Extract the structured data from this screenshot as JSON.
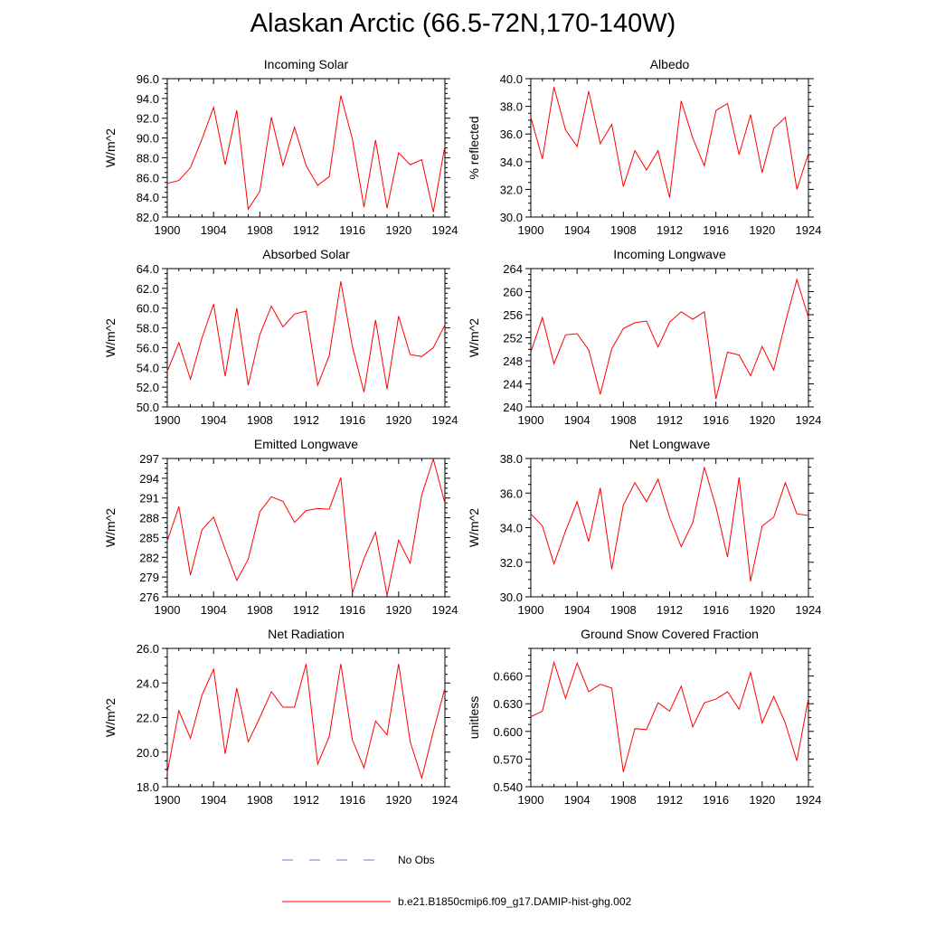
{
  "title": "Alaskan Arctic (66.5-72N,170-140W)",
  "colors": {
    "model": "#ff0000",
    "obs": "#6a7ad6",
    "axis": "#000000"
  },
  "legend": {
    "obs_label": "No Obs",
    "model_label": "b.e21.B1850cmip6.f09_g17.DAMIP-hist-ghg.002"
  },
  "chart_data": [
    {
      "type": "line",
      "title": "Incoming Solar",
      "ylabel": "W/m^2",
      "xlim": [
        1900,
        1924
      ],
      "ylim": [
        82,
        96
      ],
      "xticks": [
        "1900",
        "1904",
        "1908",
        "1912",
        "1916",
        "1920",
        "1924"
      ],
      "yticks": [
        "82.0",
        "84.0",
        "86.0",
        "88.0",
        "90.0",
        "92.0",
        "94.0",
        "96.0"
      ],
      "x": [
        1900,
        1901,
        1902,
        1903,
        1904,
        1905,
        1906,
        1907,
        1908,
        1909,
        1910,
        1911,
        1912,
        1913,
        1914,
        1915,
        1916,
        1917,
        1918,
        1919,
        1920,
        1921,
        1922,
        1923,
        1924
      ],
      "series": [
        {
          "name": "b.e21.B1850cmip6.f09_g17.DAMIP-hist-ghg.002",
          "values": [
            85.4,
            85.7,
            87.0,
            89.9,
            93.1,
            87.3,
            92.8,
            82.8,
            84.6,
            92.1,
            87.2,
            91.1,
            87.2,
            85.2,
            86.1,
            94.3,
            89.9,
            83.0,
            89.8,
            82.9,
            88.5,
            87.3,
            87.8,
            82.5,
            89.2
          ]
        }
      ]
    },
    {
      "type": "line",
      "title": "Albedo",
      "ylabel": "% reflected",
      "xlim": [
        1900,
        1924
      ],
      "ylim": [
        30,
        40
      ],
      "xticks": [
        "1900",
        "1904",
        "1908",
        "1912",
        "1916",
        "1920",
        "1924"
      ],
      "yticks": [
        "30.0",
        "32.0",
        "34.0",
        "36.0",
        "38.0",
        "40.0"
      ],
      "x": [
        1900,
        1901,
        1902,
        1903,
        1904,
        1905,
        1906,
        1907,
        1908,
        1909,
        1910,
        1911,
        1912,
        1913,
        1914,
        1915,
        1916,
        1917,
        1918,
        1919,
        1920,
        1921,
        1922,
        1923,
        1924
      ],
      "series": [
        {
          "name": "b.e21.B1850cmip6.f09_g17.DAMIP-hist-ghg.002",
          "values": [
            37.2,
            34.2,
            39.4,
            36.3,
            35.1,
            39.1,
            35.3,
            36.7,
            32.2,
            34.8,
            33.4,
            34.8,
            31.4,
            38.4,
            35.7,
            33.7,
            37.7,
            38.2,
            34.5,
            37.4,
            33.2,
            36.4,
            37.2,
            32.0,
            34.6
          ]
        }
      ]
    },
    {
      "type": "line",
      "title": "Absorbed Solar",
      "ylabel": "W/m^2",
      "xlim": [
        1900,
        1924
      ],
      "ylim": [
        50,
        64
      ],
      "xticks": [
        "1900",
        "1904",
        "1908",
        "1912",
        "1916",
        "1920",
        "1924"
      ],
      "yticks": [
        "50.0",
        "52.0",
        "54.0",
        "56.0",
        "58.0",
        "60.0",
        "62.0",
        "64.0"
      ],
      "x": [
        1900,
        1901,
        1902,
        1903,
        1904,
        1905,
        1906,
        1907,
        1908,
        1909,
        1910,
        1911,
        1912,
        1913,
        1914,
        1915,
        1916,
        1917,
        1918,
        1919,
        1920,
        1921,
        1922,
        1923,
        1924
      ],
      "series": [
        {
          "name": "b.e21.B1850cmip6.f09_g17.DAMIP-hist-ghg.002",
          "values": [
            53.6,
            56.5,
            52.8,
            57.0,
            60.4,
            53.1,
            60.0,
            52.2,
            57.3,
            60.2,
            58.1,
            59.4,
            59.7,
            52.2,
            55.2,
            62.7,
            56.1,
            51.5,
            58.8,
            51.8,
            59.2,
            55.3,
            55.1,
            56.0,
            58.3
          ]
        }
      ]
    },
    {
      "type": "line",
      "title": "Incoming Longwave",
      "ylabel": "W/m^2",
      "xlim": [
        1900,
        1924
      ],
      "ylim": [
        240,
        264
      ],
      "xticks": [
        "1900",
        "1904",
        "1908",
        "1912",
        "1916",
        "1920",
        "1924"
      ],
      "yticks": [
        "240",
        "244",
        "248",
        "252",
        "256",
        "260",
        "264"
      ],
      "x": [
        1900,
        1901,
        1902,
        1903,
        1904,
        1905,
        1906,
        1907,
        1908,
        1909,
        1910,
        1911,
        1912,
        1913,
        1914,
        1915,
        1916,
        1917,
        1918,
        1919,
        1920,
        1921,
        1922,
        1923,
        1924
      ],
      "series": [
        {
          "name": "b.e21.B1850cmip6.f09_g17.DAMIP-hist-ghg.002",
          "values": [
            249.5,
            255.5,
            247.5,
            252.5,
            252.7,
            249.9,
            242.2,
            250.1,
            253.6,
            254.6,
            254.9,
            250.4,
            254.7,
            256.5,
            255.2,
            256.5,
            241.4,
            249.5,
            249.0,
            245.4,
            250.5,
            246.4,
            254.6,
            262.1,
            255.5
          ]
        }
      ]
    },
    {
      "type": "line",
      "title": "Emitted Longwave",
      "ylabel": "W/m^2",
      "xlim": [
        1900,
        1924
      ],
      "ylim": [
        276,
        297
      ],
      "xticks": [
        "1900",
        "1904",
        "1908",
        "1912",
        "1916",
        "1920",
        "1924"
      ],
      "yticks": [
        "276",
        "279",
        "282",
        "285",
        "288",
        "291",
        "294",
        "297"
      ],
      "x": [
        1900,
        1901,
        1902,
        1903,
        1904,
        1905,
        1906,
        1907,
        1908,
        1909,
        1910,
        1911,
        1912,
        1913,
        1914,
        1915,
        1916,
        1917,
        1918,
        1919,
        1920,
        1921,
        1922,
        1923,
        1924
      ],
      "series": [
        {
          "name": "b.e21.B1850cmip6.f09_g17.DAMIP-hist-ghg.002",
          "values": [
            284.5,
            289.7,
            279.3,
            286.2,
            288.1,
            283.2,
            278.5,
            281.7,
            288.9,
            291.2,
            290.5,
            287.3,
            289.1,
            289.4,
            289.3,
            294.1,
            276.6,
            281.8,
            285.8,
            276.2,
            284.6,
            281.1,
            291.5,
            296.9,
            290.2
          ]
        }
      ]
    },
    {
      "type": "line",
      "title": "Net Longwave",
      "ylabel": "W/m^2",
      "xlim": [
        1900,
        1924
      ],
      "ylim": [
        30,
        38
      ],
      "xticks": [
        "1900",
        "1904",
        "1908",
        "1912",
        "1916",
        "1920",
        "1924"
      ],
      "yticks": [
        "30.0",
        "32.0",
        "34.0",
        "36.0",
        "38.0"
      ],
      "x": [
        1900,
        1901,
        1902,
        1903,
        1904,
        1905,
        1906,
        1907,
        1908,
        1909,
        1910,
        1911,
        1912,
        1913,
        1914,
        1915,
        1916,
        1917,
        1918,
        1919,
        1920,
        1921,
        1922,
        1923,
        1924
      ],
      "series": [
        {
          "name": "b.e21.B1850cmip6.f09_g17.DAMIP-hist-ghg.002",
          "values": [
            34.8,
            34.1,
            31.9,
            33.8,
            35.5,
            33.2,
            36.3,
            31.6,
            35.3,
            36.6,
            35.5,
            36.8,
            34.6,
            32.9,
            34.3,
            37.5,
            35.2,
            32.3,
            36.9,
            30.9,
            34.1,
            34.6,
            36.6,
            34.8,
            34.7
          ]
        }
      ]
    },
    {
      "type": "line",
      "title": "Net Radiation",
      "ylabel": "W/m^2",
      "xlim": [
        1900,
        1924
      ],
      "ylim": [
        18,
        26
      ],
      "xticks": [
        "1900",
        "1904",
        "1908",
        "1912",
        "1916",
        "1920",
        "1924"
      ],
      "yticks": [
        "18.0",
        "20.0",
        "22.0",
        "24.0",
        "26.0"
      ],
      "x": [
        1900,
        1901,
        1902,
        1903,
        1904,
        1905,
        1906,
        1907,
        1908,
        1909,
        1910,
        1911,
        1912,
        1913,
        1914,
        1915,
        1916,
        1917,
        1918,
        1919,
        1920,
        1921,
        1922,
        1923,
        1924
      ],
      "series": [
        {
          "name": "b.e21.B1850cmip6.f09_g17.DAMIP-hist-ghg.002",
          "values": [
            18.8,
            22.4,
            20.8,
            23.3,
            24.8,
            19.9,
            23.7,
            20.6,
            22.0,
            23.5,
            22.6,
            22.6,
            25.1,
            19.3,
            20.9,
            25.1,
            20.7,
            19.1,
            21.8,
            21.0,
            25.1,
            20.6,
            18.5,
            21.2,
            23.7
          ]
        }
      ]
    },
    {
      "type": "line",
      "title": "Ground Snow Covered Fraction",
      "ylabel": "unitless",
      "xlim": [
        1900,
        1924
      ],
      "ylim": [
        0.54,
        0.69
      ],
      "xticks": [
        "1900",
        "1904",
        "1908",
        "1912",
        "1916",
        "1920",
        "1924"
      ],
      "yticks": [
        "0.540",
        "0.570",
        "0.600",
        "0.630",
        "0.660"
      ],
      "x": [
        1900,
        1901,
        1902,
        1903,
        1904,
        1905,
        1906,
        1907,
        1908,
        1909,
        1910,
        1911,
        1912,
        1913,
        1914,
        1915,
        1916,
        1917,
        1918,
        1919,
        1920,
        1921,
        1922,
        1923,
        1924
      ],
      "series": [
        {
          "name": "b.e21.B1850cmip6.f09_g17.DAMIP-hist-ghg.002",
          "values": [
            0.616,
            0.622,
            0.675,
            0.636,
            0.674,
            0.643,
            0.651,
            0.647,
            0.556,
            0.603,
            0.602,
            0.631,
            0.622,
            0.649,
            0.605,
            0.631,
            0.635,
            0.643,
            0.624,
            0.664,
            0.609,
            0.638,
            0.609,
            0.568,
            0.636
          ]
        }
      ]
    }
  ]
}
